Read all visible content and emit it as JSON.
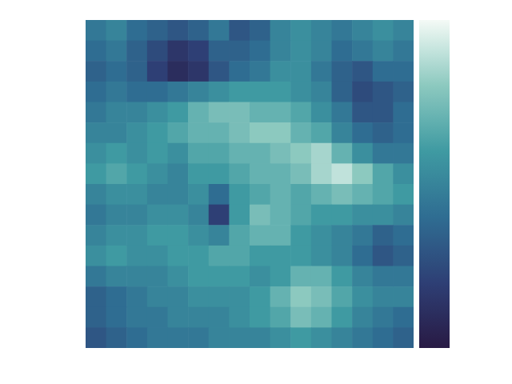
{
  "chart_data": {
    "type": "heatmap",
    "tick_labels": false,
    "color_range": [
      0,
      1
    ],
    "cells": [
      [
        0.45,
        0.5,
        0.4,
        0.35,
        0.3,
        0.35,
        0.45,
        0.3,
        0.35,
        0.5,
        0.55,
        0.5,
        0.45,
        0.5,
        0.55,
        0.5
      ],
      [
        0.4,
        0.45,
        0.35,
        0.25,
        0.15,
        0.2,
        0.35,
        0.35,
        0.4,
        0.5,
        0.55,
        0.5,
        0.4,
        0.45,
        0.5,
        0.45
      ],
      [
        0.35,
        0.4,
        0.35,
        0.2,
        0.1,
        0.15,
        0.3,
        0.4,
        0.45,
        0.55,
        0.55,
        0.45,
        0.35,
        0.3,
        0.4,
        0.4
      ],
      [
        0.4,
        0.45,
        0.4,
        0.4,
        0.45,
        0.5,
        0.55,
        0.6,
        0.6,
        0.6,
        0.55,
        0.5,
        0.35,
        0.25,
        0.3,
        0.35
      ],
      [
        0.45,
        0.5,
        0.5,
        0.55,
        0.6,
        0.7,
        0.75,
        0.75,
        0.7,
        0.7,
        0.65,
        0.55,
        0.45,
        0.3,
        0.3,
        0.4
      ],
      [
        0.5,
        0.5,
        0.55,
        0.6,
        0.65,
        0.7,
        0.7,
        0.75,
        0.8,
        0.8,
        0.7,
        0.65,
        0.5,
        0.4,
        0.35,
        0.4
      ],
      [
        0.55,
        0.6,
        0.55,
        0.6,
        0.55,
        0.65,
        0.65,
        0.7,
        0.7,
        0.75,
        0.8,
        0.85,
        0.7,
        0.55,
        0.45,
        0.45
      ],
      [
        0.6,
        0.65,
        0.6,
        0.55,
        0.5,
        0.6,
        0.6,
        0.65,
        0.7,
        0.7,
        0.75,
        0.85,
        0.9,
        0.8,
        0.65,
        0.55
      ],
      [
        0.5,
        0.55,
        0.55,
        0.5,
        0.5,
        0.55,
        0.4,
        0.6,
        0.65,
        0.7,
        0.65,
        0.7,
        0.75,
        0.7,
        0.65,
        0.6
      ],
      [
        0.45,
        0.5,
        0.5,
        0.55,
        0.55,
        0.5,
        0.2,
        0.6,
        0.75,
        0.7,
        0.65,
        0.6,
        0.6,
        0.55,
        0.55,
        0.5
      ],
      [
        0.5,
        0.55,
        0.55,
        0.6,
        0.6,
        0.55,
        0.5,
        0.65,
        0.7,
        0.7,
        0.6,
        0.55,
        0.5,
        0.45,
        0.35,
        0.4
      ],
      [
        0.55,
        0.6,
        0.55,
        0.55,
        0.6,
        0.6,
        0.65,
        0.65,
        0.6,
        0.6,
        0.6,
        0.55,
        0.5,
        0.4,
        0.3,
        0.35
      ],
      [
        0.45,
        0.5,
        0.5,
        0.5,
        0.55,
        0.6,
        0.6,
        0.6,
        0.55,
        0.6,
        0.7,
        0.7,
        0.6,
        0.5,
        0.45,
        0.45
      ],
      [
        0.35,
        0.4,
        0.45,
        0.5,
        0.5,
        0.55,
        0.55,
        0.55,
        0.6,
        0.7,
        0.8,
        0.75,
        0.65,
        0.55,
        0.5,
        0.5
      ],
      [
        0.35,
        0.4,
        0.45,
        0.45,
        0.5,
        0.5,
        0.5,
        0.55,
        0.6,
        0.65,
        0.75,
        0.7,
        0.6,
        0.5,
        0.45,
        0.4
      ],
      [
        0.3,
        0.35,
        0.4,
        0.45,
        0.45,
        0.45,
        0.5,
        0.5,
        0.5,
        0.55,
        0.6,
        0.55,
        0.5,
        0.45,
        0.4,
        0.35
      ]
    ]
  }
}
